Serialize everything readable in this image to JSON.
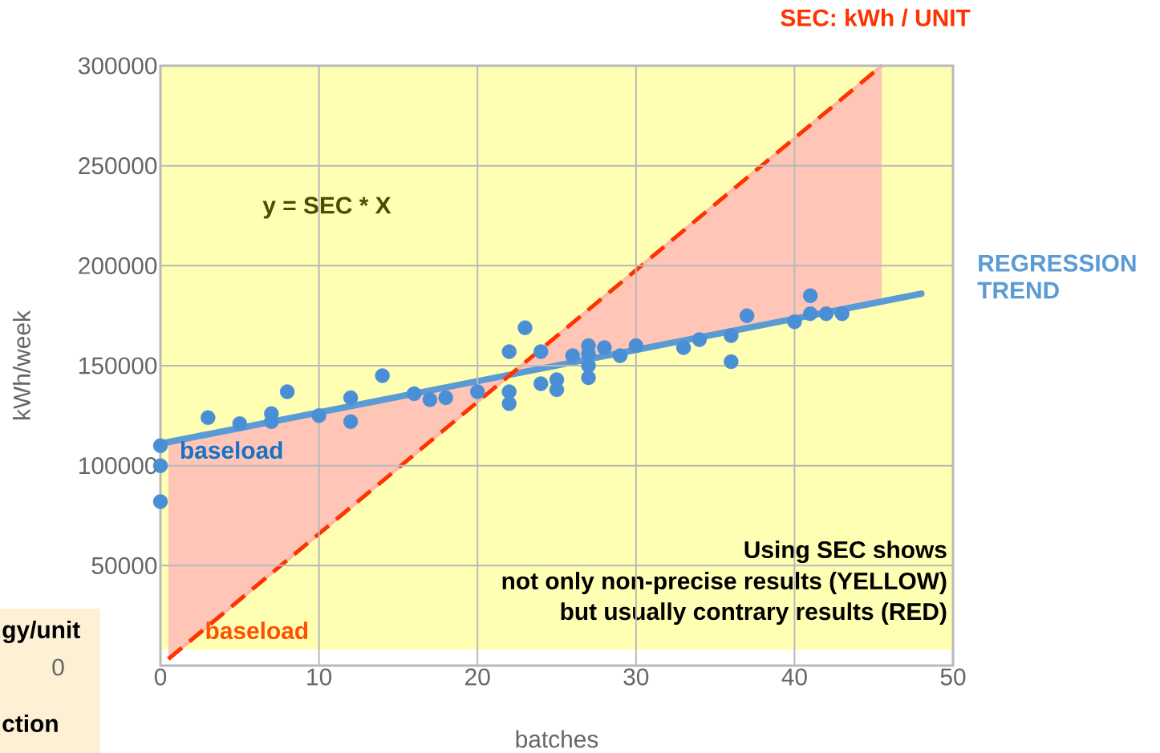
{
  "chart_data": {
    "type": "scatter",
    "xlabel": "batches",
    "ylabel": "kWh/week",
    "xlim": [
      0,
      50
    ],
    "ylim": [
      0,
      300000
    ],
    "xticks": [
      0,
      10,
      20,
      30,
      40,
      50
    ],
    "yticks": [
      50000,
      100000,
      150000,
      200000,
      250000,
      300000
    ],
    "grid": true,
    "series": [
      {
        "marker": "circle",
        "color": "#4a8fd6",
        "x": [
          0,
          0,
          0,
          3,
          5,
          7,
          7,
          8,
          10,
          12,
          12,
          14,
          16,
          17,
          18,
          20,
          22,
          22,
          22,
          23,
          24,
          24,
          25,
          25,
          26,
          27,
          27,
          27,
          27,
          28,
          29,
          30,
          33,
          34,
          36,
          36,
          37,
          40,
          41,
          41,
          42,
          43
        ],
        "values": [
          110000,
          100000,
          82000,
          124000,
          121000,
          126000,
          122000,
          137000,
          125000,
          134000,
          122000,
          145000,
          136000,
          133000,
          134000,
          137000,
          157000,
          137000,
          131000,
          169000,
          157000,
          141000,
          143000,
          138000,
          155000,
          160000,
          156000,
          150000,
          144000,
          159000,
          155000,
          160000,
          159000,
          163000,
          165000,
          152000,
          175000,
          172000,
          185000,
          176000,
          176000,
          176000
        ]
      },
      {
        "type": "line",
        "marker": "none",
        "name": "REGRESSION TREND",
        "color": "#5b9bd5",
        "x": [
          0,
          48
        ],
        "values": [
          111000,
          186000
        ]
      },
      {
        "type": "line",
        "marker": "none",
        "name": "SEC: kWh / UNIT",
        "color": "#ff3300",
        "line_style": "dashed",
        "x": [
          0.5,
          22,
          45.5
        ],
        "values": [
          3300,
          145000,
          300000
        ],
        "lower": [
          3300,
          145000,
          182000
        ],
        "upper": [
          111800,
          145000,
          300000
        ]
      }
    ],
    "bands": [
      {
        "axis": "y",
        "from": 8000,
        "to": 300000,
        "color": "#ffffb3"
      }
    ],
    "annotations": [
      "y = SEC * X",
      "baseload",
      "baseload",
      "Using SEC shows",
      "not only non-precise results (YELLOW)",
      "but usually contrary results (RED)",
      "gy/unit",
      "0",
      "ction"
    ]
  }
}
